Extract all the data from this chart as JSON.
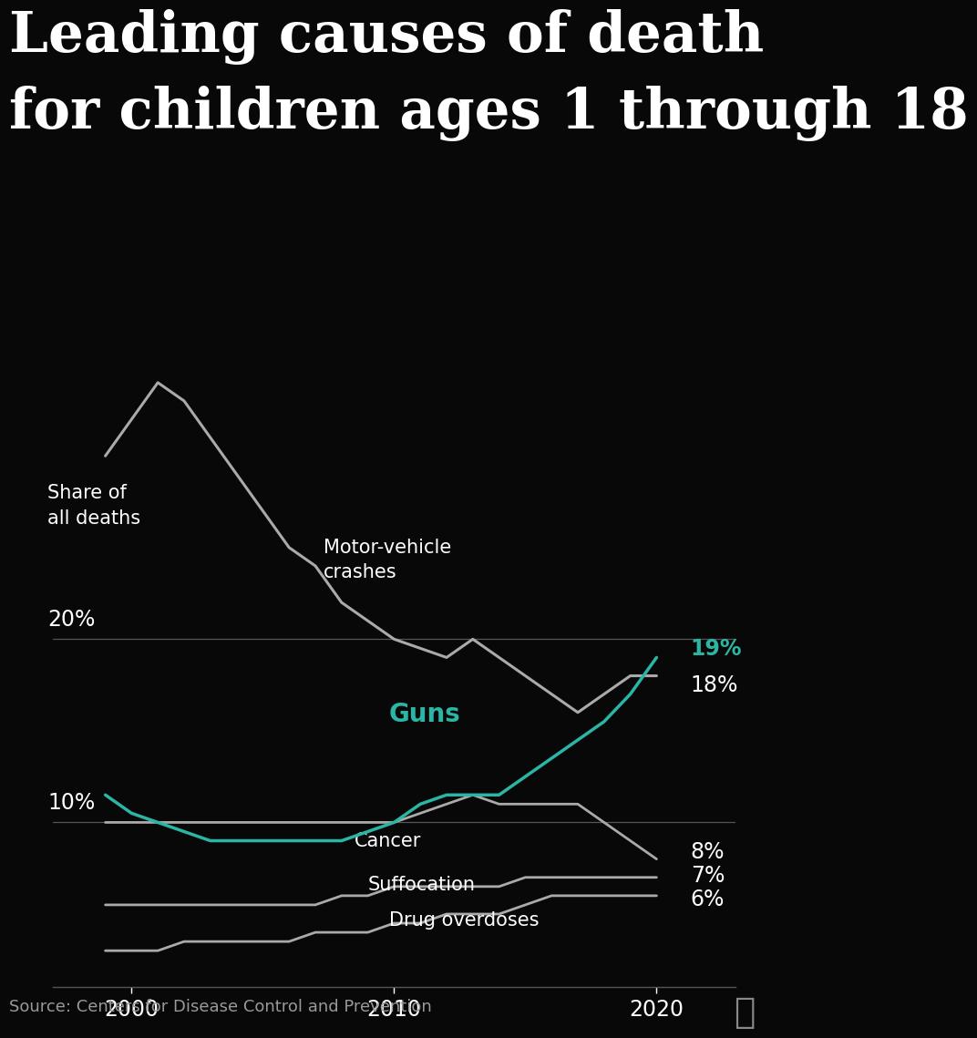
{
  "title_line1": "Leading causes of death",
  "title_line2": "for children ages 1 through 18",
  "background_color": "#080808",
  "text_color": "#ffffff",
  "source_text": "Source: Centers for Disease Control and Prevention",
  "years": [
    1999,
    2000,
    2001,
    2002,
    2003,
    2004,
    2005,
    2006,
    2007,
    2008,
    2009,
    2010,
    2011,
    2012,
    2013,
    2014,
    2015,
    2016,
    2017,
    2018,
    2019,
    2020
  ],
  "motor_vehicle": [
    30,
    32,
    34,
    33,
    31,
    29,
    27,
    25,
    24,
    22,
    21,
    20,
    19.5,
    19,
    20,
    19,
    18,
    17,
    16,
    17,
    18,
    18
  ],
  "guns": [
    11.5,
    10.5,
    10,
    9.5,
    9,
    9,
    9,
    9,
    9,
    9,
    9.5,
    10,
    11,
    11.5,
    11.5,
    11.5,
    12.5,
    13.5,
    14.5,
    15.5,
    17,
    19
  ],
  "cancer": [
    10,
    10,
    10,
    10,
    10,
    10,
    10,
    10,
    10,
    10,
    10,
    10,
    10.5,
    11,
    11.5,
    11,
    11,
    11,
    11,
    10,
    9,
    8
  ],
  "suffocation": [
    5.5,
    5.5,
    5.5,
    5.5,
    5.5,
    5.5,
    5.5,
    5.5,
    5.5,
    6,
    6,
    6.5,
    6.5,
    6.5,
    6.5,
    6.5,
    7,
    7,
    7,
    7,
    7,
    7
  ],
  "drug_overdoses": [
    3,
    3,
    3,
    3.5,
    3.5,
    3.5,
    3.5,
    3.5,
    4,
    4,
    4,
    4.5,
    4.5,
    5,
    5,
    5,
    5.5,
    6,
    6,
    6,
    6,
    6
  ],
  "guns_color": "#2ab5a5",
  "motor_color": "#aaaaaa",
  "other_color": "#aaaaaa",
  "hline_color": "#555555"
}
